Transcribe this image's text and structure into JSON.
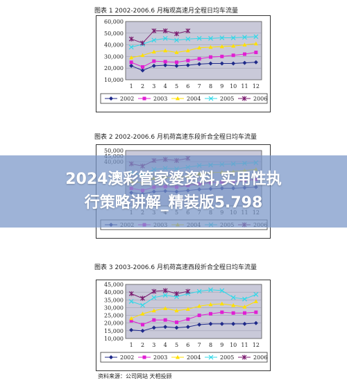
{
  "banner": {
    "line1": "2024澳彩管家婆资料,实用性执",
    "line2": "行策略讲解_精装版5.798"
  },
  "source_note": "资料来源：公司网站  天相投顾",
  "charts": [
    {
      "title": "图表 1    2002-2006.6 月梅观高速月全程日均车流量",
      "chart_data": {
        "type": "line",
        "categories": [
          "1",
          "2",
          "3",
          "4",
          "5",
          "6",
          "7",
          "8",
          "9",
          "10",
          "11",
          "12"
        ],
        "ylim": [
          10000,
          60000
        ],
        "yticks": [
          "60,000",
          "50,000",
          "40,000",
          "30,000",
          "20,000",
          "10,000"
        ],
        "legend_position": "bottom",
        "series": [
          {
            "name": "2002",
            "color": "#1f2a8a",
            "marker": "diamond",
            "values": [
              22000,
              18000,
              22000,
              22500,
              22000,
              22500,
              23500,
              24000,
              24000,
              24000,
              24500,
              25000
            ]
          },
          {
            "name": "2003",
            "color": "#e01fd3",
            "marker": "square",
            "values": [
              25000,
              21000,
              26000,
              25500,
              25000,
              26500,
              28000,
              29500,
              30000,
              31000,
              32000,
              33500
            ]
          },
          {
            "name": "2004",
            "color": "#ffe000",
            "marker": "triangle",
            "values": [
              29000,
              31000,
              34000,
              35000,
              33500,
              35000,
              37500,
              38000,
              38500,
              39000,
              40000,
              41000
            ]
          },
          {
            "name": "2005",
            "color": "#30d8e8",
            "marker": "x",
            "values": [
              38000,
              40500,
              44000,
              45500,
              44000,
              45000,
              45500,
              45500,
              46000,
              46000,
              46500,
              47000
            ]
          },
          {
            "name": "2006",
            "color": "#7a1a6e",
            "marker": "star",
            "values": [
              45000,
              41500,
              52000,
              52000,
              49500,
              52000,
              null,
              null,
              null,
              null,
              null,
              null
            ]
          }
        ]
      }
    },
    {
      "title": "图表 2    2002-2006.6 月机荷高速东段折合全程日均车流量",
      "chart_data": {
        "type": "line",
        "categories": [
          "1",
          "2",
          "3",
          "4",
          "5",
          "6",
          "7",
          "8",
          "9",
          "10",
          "11",
          "12"
        ],
        "ylim": [
          0,
          50000
        ],
        "yticks": [
          "50,000",
          "45,000",
          "40,000"
        ],
        "legend_position": "bottom",
        "series": [
          {
            "name": "2002",
            "color": "#1f2a8a",
            "marker": "diamond",
            "values": [
              12000,
              11000,
              13000,
              13500,
              13000,
              14000,
              15000,
              15500,
              16000,
              16000,
              16500,
              17000
            ]
          },
          {
            "name": "2003",
            "color": "#e01fd3",
            "marker": "square",
            "values": [
              16000,
              14000,
              17000,
              17500,
              17000,
              18500,
              20000,
              21000,
              21500,
              22000,
              23000,
              24000
            ]
          },
          {
            "name": "2004",
            "color": "#ffe000",
            "marker": "triangle",
            "values": [
              22000,
              21000,
              25000,
              26000,
              25500,
              27000,
              29000,
              30000,
              30500,
              31000,
              32000,
              33000
            ]
          },
          {
            "name": "2005",
            "color": "#30d8e8",
            "marker": "x",
            "values": [
              30000,
              28000,
              33000,
              34000,
              33500,
              35000,
              36500,
              37000,
              37500,
              38000,
              38500,
              39000
            ]
          },
          {
            "name": "2006",
            "color": "#7a1a6e",
            "marker": "star",
            "values": [
              38000,
              36000,
              41000,
              42000,
              41000,
              43000,
              null,
              null,
              null,
              null,
              null,
              null
            ]
          }
        ]
      }
    },
    {
      "title": "图表 3    2003-2006.6 月机荷高速西段折合全程日均车流量",
      "chart_data": {
        "type": "line",
        "categories": [
          "1",
          "2",
          "3",
          "4",
          "5",
          "6",
          "7",
          "8",
          "9",
          "10",
          "11",
          "12"
        ],
        "ylim": [
          10000,
          45000
        ],
        "yticks": [
          "45,000",
          "40,000",
          "35,000",
          "30,000",
          "25,000",
          "20,000",
          "15,000",
          "10,000"
        ],
        "legend_position": "bottom",
        "series": [
          {
            "name": "2002",
            "color": "#1f2a8a",
            "marker": "diamond",
            "values": [
              15500,
              15000,
              17000,
              17500,
              17000,
              17500,
              19000,
              19500,
              19500,
              19500,
              19500,
              20000
            ]
          },
          {
            "name": "2003",
            "color": "#e01fd3",
            "marker": "square",
            "values": [
              21500,
              19000,
              22000,
              22000,
              20500,
              22500,
              25000,
              26000,
              27000,
              26500,
              26500,
              27000
            ]
          },
          {
            "name": "2004",
            "color": "#ffe000",
            "marker": "triangle",
            "values": [
              23000,
              26000,
              28000,
              29500,
              28000,
              29000,
              31000,
              32000,
              32500,
              31500,
              30500,
              34000
            ]
          },
          {
            "name": "2005",
            "color": "#30d8e8",
            "marker": "x",
            "values": [
              34000,
              31500,
              36500,
              38000,
              37000,
              39000,
              40500,
              41500,
              41000,
              36500,
              35500,
              38500
            ]
          },
          {
            "name": "2006",
            "color": "#7a1a6e",
            "marker": "star",
            "values": [
              39000,
              36000,
              40500,
              41000,
              39000,
              40500,
              null,
              null,
              null,
              null,
              null,
              null
            ]
          }
        ]
      }
    }
  ]
}
